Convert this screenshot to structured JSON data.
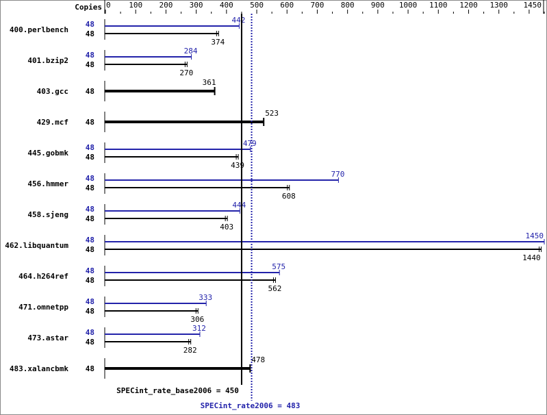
{
  "chart_data": {
    "type": "bar",
    "orientation": "horizontal",
    "axis": {
      "header_label": "Copies",
      "xlim": [
        0,
        1450
      ],
      "tick_labels": [
        "0",
        "100",
        "200",
        "300",
        "400",
        "500",
        "600",
        "700",
        "800",
        "900",
        "1000",
        "1100",
        "1200",
        "1300",
        "1450"
      ],
      "tick_values": [
        0,
        100,
        200,
        300,
        400,
        500,
        600,
        700,
        800,
        900,
        1000,
        1100,
        1200,
        1300,
        1450
      ]
    },
    "colors": {
      "base": "#000000",
      "peak": "#2222aa"
    },
    "benchmarks": [
      {
        "name": "400.perlbench",
        "peak_copies": "48",
        "peak": 442,
        "base_copies": "48",
        "base": 374
      },
      {
        "name": "401.bzip2",
        "peak_copies": "48",
        "peak": 284,
        "base_copies": "48",
        "base": 270
      },
      {
        "name": "403.gcc",
        "peak_copies": null,
        "peak": null,
        "base_copies": "48",
        "base": 361
      },
      {
        "name": "429.mcf",
        "peak_copies": null,
        "peak": null,
        "base_copies": "48",
        "base": 523
      },
      {
        "name": "445.gobmk",
        "peak_copies": "48",
        "peak": 479,
        "base_copies": "48",
        "base": 439
      },
      {
        "name": "456.hmmer",
        "peak_copies": "48",
        "peak": 770,
        "base_copies": "48",
        "base": 608
      },
      {
        "name": "458.sjeng",
        "peak_copies": "48",
        "peak": 444,
        "base_copies": "48",
        "base": 403
      },
      {
        "name": "462.libquantum",
        "peak_copies": "48",
        "peak": 1450,
        "base_copies": "48",
        "base": 1440
      },
      {
        "name": "464.h264ref",
        "peak_copies": "48",
        "peak": 575,
        "base_copies": "48",
        "base": 562
      },
      {
        "name": "471.omnetpp",
        "peak_copies": "48",
        "peak": 333,
        "base_copies": "48",
        "base": 306
      },
      {
        "name": "473.astar",
        "peak_copies": "48",
        "peak": 312,
        "base_copies": "48",
        "base": 282
      },
      {
        "name": "483.xalancbmk",
        "peak_copies": null,
        "peak": null,
        "base_copies": "48",
        "base": 478
      }
    ],
    "base_mean": {
      "label": "SPECint_rate_base2006 = 450",
      "value": 450
    },
    "peak_mean": {
      "label": "SPECint_rate2006 = 483",
      "value": 483
    }
  }
}
